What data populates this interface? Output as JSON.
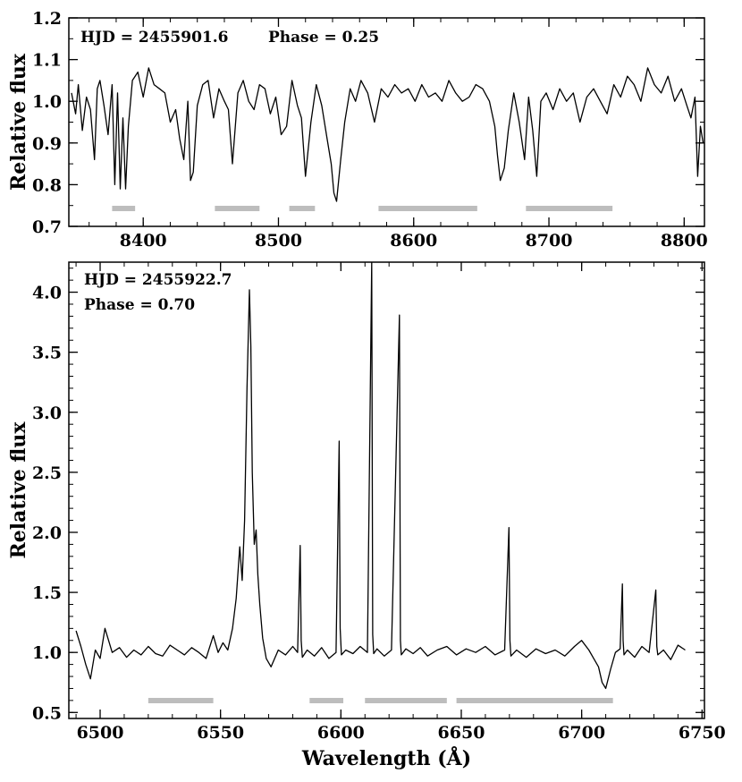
{
  "chart_data": [
    {
      "type": "line",
      "title": "",
      "xlabel": "",
      "ylabel": "Relative flux",
      "xlim": [
        8345,
        8815
      ],
      "ylim": [
        0.7,
        1.2
      ],
      "grid": false,
      "annotations": [
        "HJD = 2455901.6",
        "Phase = 0.25"
      ],
      "x_ticks": [
        8400,
        8500,
        8600,
        8700,
        8800
      ],
      "y_ticks": [
        0.7,
        0.8,
        0.9,
        1.0,
        1.1,
        1.2
      ],
      "x_tick_labels": [
        "8400",
        "8500",
        "8600",
        "8700",
        "8800"
      ],
      "y_tick_labels": [
        "0.7",
        "0.8",
        "0.9",
        "1.0",
        "1.1",
        "1.2"
      ],
      "series": [
        {
          "color": "#000000",
          "x": [
            8347,
            8350,
            8352,
            8355,
            8358,
            8361,
            8364,
            8366,
            8368,
            8371,
            8374,
            8377,
            8379,
            8381,
            8383,
            8385,
            8387,
            8389,
            8392,
            8396,
            8400,
            8404,
            8408,
            8412,
            8416,
            8420,
            8424,
            8427,
            8430,
            8433,
            8435,
            8437,
            8440,
            8444,
            8448,
            8452,
            8456,
            8460,
            8463,
            8466,
            8470,
            8474,
            8478,
            8482,
            8486,
            8490,
            8494,
            8498,
            8502,
            8506,
            8510,
            8514,
            8517,
            8520,
            8524,
            8528,
            8532,
            8536,
            8539,
            8541,
            8543,
            8546,
            8549,
            8553,
            8557,
            8561,
            8566,
            8571,
            8576,
            8581,
            8586,
            8591,
            8596,
            8601,
            8606,
            8611,
            8616,
            8621,
            8626,
            8631,
            8636,
            8641,
            8646,
            8651,
            8656,
            8660,
            8662,
            8664,
            8667,
            8670,
            8674,
            8678,
            8682,
            8685,
            8688,
            8691,
            8694,
            8698,
            8703,
            8708,
            8713,
            8718,
            8723,
            8728,
            8733,
            8738,
            8743,
            8748,
            8753,
            8758,
            8763,
            8768,
            8773,
            8778,
            8783,
            8788,
            8793,
            8798,
            8802,
            8805,
            8808,
            8810,
            8812,
            8814
          ],
          "y": [
            1.02,
            0.97,
            1.04,
            0.93,
            1.01,
            0.98,
            0.86,
            1.03,
            1.05,
            0.99,
            0.92,
            1.04,
            0.8,
            1.02,
            0.79,
            0.96,
            0.79,
            0.94,
            1.05,
            1.07,
            1.01,
            1.08,
            1.04,
            1.03,
            1.02,
            0.95,
            0.98,
            0.91,
            0.86,
            1.0,
            0.81,
            0.83,
            0.99,
            1.04,
            1.05,
            0.96,
            1.03,
            1.0,
            0.98,
            0.85,
            1.02,
            1.05,
            1.0,
            0.98,
            1.04,
            1.03,
            0.97,
            1.01,
            0.92,
            0.94,
            1.05,
            0.99,
            0.96,
            0.82,
            0.95,
            1.04,
            0.99,
            0.91,
            0.85,
            0.78,
            0.76,
            0.86,
            0.95,
            1.03,
            1.0,
            1.05,
            1.02,
            0.95,
            1.03,
            1.01,
            1.04,
            1.02,
            1.03,
            1.0,
            1.04,
            1.01,
            1.02,
            1.0,
            1.05,
            1.02,
            1.0,
            1.01,
            1.04,
            1.03,
            1.0,
            0.94,
            0.87,
            0.81,
            0.84,
            0.93,
            1.02,
            0.95,
            0.86,
            1.01,
            0.93,
            0.82,
            1.0,
            1.02,
            0.98,
            1.03,
            1.0,
            1.02,
            0.95,
            1.01,
            1.03,
            1.0,
            0.97,
            1.04,
            1.01,
            1.06,
            1.04,
            1.0,
            1.08,
            1.04,
            1.02,
            1.06,
            1.0,
            1.03,
            0.99,
            0.96,
            1.01,
            0.82,
            0.94,
            0.9
          ]
        }
      ],
      "masked_regions": [
        [
          8377,
          8394
        ],
        [
          8453,
          8486
        ],
        [
          8508,
          8527
        ],
        [
          8574,
          8647
        ],
        [
          8683,
          8747
        ]
      ],
      "masked_color": "#bdbdbd"
    },
    {
      "type": "line",
      "title": "",
      "xlabel": "Wavelength (Å)",
      "ylabel": "Relative flux",
      "xlim": [
        6487,
        6751
      ],
      "ylim": [
        0.45,
        4.25
      ],
      "grid": false,
      "annotations": [
        "HJD = 2455922.7",
        "Phase = 0.70"
      ],
      "x_ticks": [
        6500,
        6550,
        6600,
        6650,
        6700,
        6750
      ],
      "y_ticks": [
        0.5,
        1.0,
        1.5,
        2.0,
        2.5,
        3.0,
        3.5,
        4.0
      ],
      "x_tick_labels": [
        "6500",
        "6550",
        "6600",
        "6650",
        "6700",
        "6750"
      ],
      "y_tick_labels": [
        "0.5",
        "1.0",
        "1.5",
        "2.0",
        "2.5",
        "3.0",
        "3.5",
        "4.0"
      ],
      "series": [
        {
          "color": "#000000",
          "x": [
            6490,
            6492,
            6494,
            6496,
            6498,
            6500,
            6502,
            6505,
            6508,
            6511,
            6514,
            6517,
            6520,
            6523,
            6526,
            6529,
            6532,
            6535,
            6538,
            6541,
            6544,
            6547,
            6549,
            6551,
            6553,
            6555,
            6556.5,
            6558,
            6559,
            6560,
            6561,
            6562,
            6562.6,
            6563.2,
            6564,
            6564.8,
            6565.5,
            6566.3,
            6567.5,
            6569,
            6571,
            6574,
            6577,
            6580,
            6582,
            6583.1,
            6583.5,
            6584,
            6586,
            6589,
            6592,
            6595,
            6598,
            6599.3,
            6599.7,
            6600.2,
            6602,
            6605,
            6608,
            6611,
            6612.8,
            6613.2,
            6613.6,
            6615,
            6618,
            6621,
            6624.3,
            6624.7,
            6625.1,
            6627,
            6630,
            6633,
            6636,
            6640,
            6644,
            6648,
            6652,
            6656,
            6660,
            6664,
            6668,
            6669.8,
            6670.2,
            6670.6,
            6673,
            6677,
            6681,
            6685,
            6689,
            6693,
            6697,
            6700,
            6703,
            6705,
            6707,
            6708.5,
            6710,
            6712,
            6714,
            6716,
            6716.9,
            6717.2,
            6717.6,
            6719,
            6722,
            6725,
            6728,
            6730.8,
            6731.2,
            6731.6,
            6734,
            6737,
            6740,
            6743
          ],
          "y": [
            1.18,
            1.05,
            0.9,
            0.78,
            1.02,
            0.95,
            1.2,
            1.0,
            1.04,
            0.96,
            1.02,
            0.98,
            1.05,
            0.99,
            0.97,
            1.06,
            1.02,
            0.98,
            1.04,
            1.0,
            0.95,
            1.14,
            1.0,
            1.08,
            1.02,
            1.2,
            1.45,
            1.88,
            1.6,
            2.1,
            3.2,
            4.02,
            3.55,
            2.5,
            1.9,
            2.02,
            1.65,
            1.4,
            1.12,
            0.95,
            0.88,
            1.02,
            0.98,
            1.05,
            1.0,
            1.89,
            1.1,
            0.96,
            1.02,
            0.97,
            1.04,
            0.95,
            1.0,
            2.76,
            1.2,
            0.98,
            1.02,
            0.99,
            1.05,
            1.0,
            4.25,
            1.15,
            0.99,
            1.03,
            0.97,
            1.02,
            3.81,
            1.1,
            0.98,
            1.03,
            0.99,
            1.04,
            0.97,
            1.02,
            1.05,
            0.98,
            1.03,
            1.0,
            1.05,
            0.98,
            1.02,
            2.04,
            1.1,
            0.97,
            1.02,
            0.96,
            1.03,
            0.99,
            1.02,
            0.97,
            1.05,
            1.1,
            1.02,
            0.95,
            0.88,
            0.75,
            0.7,
            0.86,
            1.0,
            1.03,
            1.57,
            1.1,
            0.98,
            1.02,
            0.96,
            1.05,
            1.0,
            1.52,
            1.05,
            0.98,
            1.02,
            0.94,
            1.06,
            1.02
          ]
        }
      ],
      "masked_regions": [
        [
          6520,
          6547
        ],
        [
          6587,
          6601
        ],
        [
          6610,
          6644
        ],
        [
          6648,
          6713
        ]
      ],
      "masked_color": "#bdbdbd"
    }
  ]
}
